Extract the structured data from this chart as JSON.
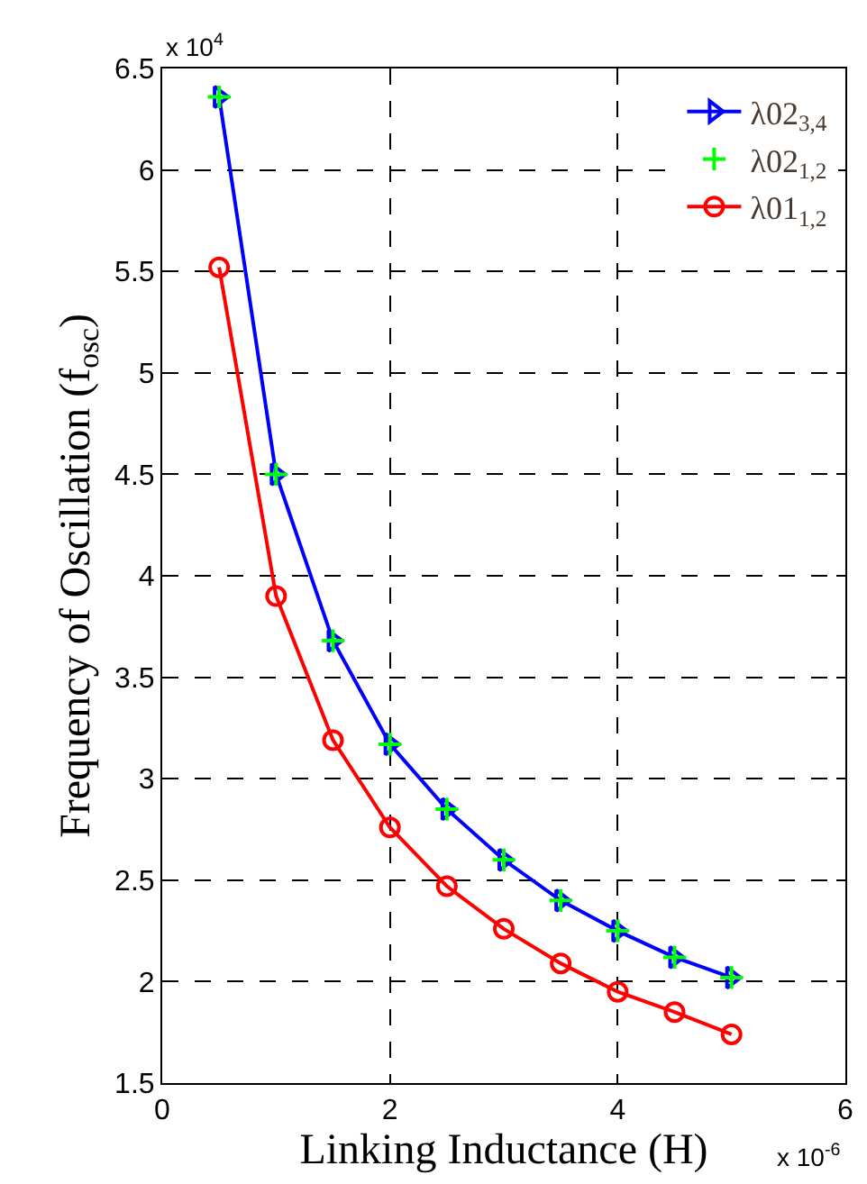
{
  "chart_data": {
    "type": "line",
    "xlabel": "Linking Inductance (H)",
    "ylabel": "Frequency of Oscillation (f$_{osc}$)",
    "annotations": [
      "x 10$^{4}$",
      "x 10$^{-6}$"
    ],
    "x": [
      0.5,
      1,
      1.5,
      2,
      2.5,
      3,
      3.5,
      4,
      4.5,
      5
    ],
    "series": [
      {
        "name": "λ02$_{3,4}$",
        "color": "#0000ff",
        "marker": "triangle",
        "values": [
          6.36,
          4.5,
          3.68,
          3.17,
          2.85,
          2.6,
          2.4,
          2.25,
          2.12,
          2.02
        ]
      },
      {
        "name": "λ02$_{1,2}$",
        "color": "#00ff00",
        "marker": "cross",
        "type": "scatter",
        "values": [
          6.36,
          4.5,
          3.68,
          3.17,
          2.85,
          2.6,
          2.4,
          2.25,
          2.12,
          2.02
        ]
      },
      {
        "name": "λ01$_{1,2}$",
        "color": "#ff0000",
        "marker": "circle",
        "values": [
          5.52,
          3.9,
          3.19,
          2.76,
          2.47,
          2.26,
          2.09,
          1.95,
          1.85,
          1.74
        ]
      }
    ],
    "xlim": [
      0,
      6
    ],
    "xticks": [
      0,
      2,
      4,
      6
    ],
    "ylim": [
      1.5,
      6.5
    ],
    "yticks": [
      1.5,
      2,
      2.5,
      3,
      3.5,
      4,
      4.5,
      5,
      5.5,
      6,
      6.5
    ],
    "grid": true,
    "legend": "top right",
    "line_style": "solid"
  }
}
